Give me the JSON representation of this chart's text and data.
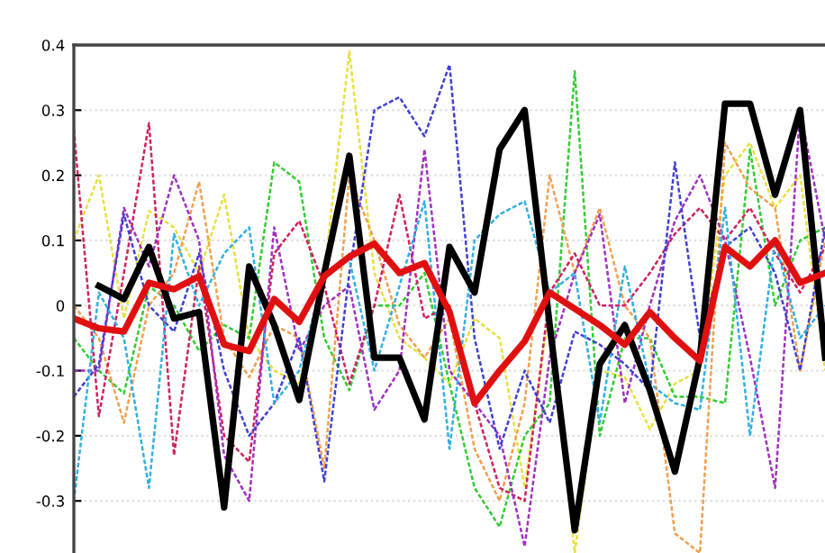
{
  "chart_data": {
    "type": "line",
    "categories": [
      null,
      null,
      null,
      null,
      null,
      null,
      null,
      null,
      null,
      null,
      null,
      null,
      null,
      null,
      null,
      null,
      null,
      null,
      null,
      null,
      null,
      null,
      null,
      null,
      null,
      null,
      null,
      null,
      null,
      null,
      null
    ],
    "ylim": [
      -0.38,
      0.4
    ],
    "yticks": [
      -0.3,
      -0.2,
      -0.1,
      0,
      0.1,
      0.2,
      0.3,
      0.4
    ],
    "tick_labels": "y",
    "grid": "y",
    "legend": false,
    "marker": "none",
    "series": [
      {
        "color": "#e8e040",
        "line_style": "dashed",
        "values": [
          0.1,
          0.2,
          -0.02,
          0.145,
          0.12,
          0.05,
          0.17,
          -0.05,
          -0.1,
          -0.12,
          0.05,
          0.39,
          0.05,
          -0.05,
          -0.08,
          -0.12,
          -0.02,
          -0.05,
          -0.28,
          0.0,
          -0.38,
          -0.1,
          -0.11,
          -0.19,
          -0.12,
          -0.1,
          0.2,
          0.25,
          0.15,
          0.2,
          -0.1
        ]
      },
      {
        "color": "#33cc33",
        "line_style": "dashed",
        "values": [
          -0.05,
          -0.1,
          -0.135,
          0.03,
          0.0,
          -0.07,
          -0.03,
          -0.05,
          0.22,
          0.19,
          -0.05,
          -0.13,
          0.0,
          0.0,
          0.05,
          -0.12,
          -0.28,
          -0.34,
          -0.2,
          -0.15,
          0.36,
          -0.2,
          -0.05,
          -0.05,
          -0.14,
          -0.14,
          -0.15,
          0.24,
          0.0,
          0.1,
          0.12
        ]
      },
      {
        "color": "#f0a050",
        "line_style": "dashed",
        "values": [
          0.0,
          -0.05,
          -0.18,
          0.0,
          0.05,
          0.19,
          -0.05,
          -0.11,
          -0.03,
          -0.05,
          -0.25,
          0.2,
          0.1,
          -0.03,
          -0.08,
          -0.02,
          -0.22,
          -0.3,
          -0.15,
          0.2,
          0.05,
          0.15,
          0.0,
          -0.05,
          -0.35,
          -0.38,
          0.25,
          0.18,
          0.15,
          -0.1,
          0.1
        ]
      },
      {
        "color": "#d02060",
        "line_style": "dashed",
        "values": [
          0.27,
          -0.17,
          0.05,
          0.28,
          -0.23,
          0.06,
          -0.2,
          -0.24,
          0.08,
          0.13,
          0.03,
          -0.12,
          0.0,
          0.17,
          -0.02,
          0.0,
          -0.15,
          -0.28,
          -0.3,
          0.02,
          0.08,
          0.0,
          0.0,
          0.05,
          0.11,
          0.15,
          0.1,
          0.15,
          0.08,
          0.02,
          0.09
        ]
      },
      {
        "color": "#a030c0",
        "line_style": "dashed",
        "values": [
          -0.1,
          -0.1,
          0.15,
          0.06,
          0.2,
          0.1,
          -0.23,
          -0.3,
          0.12,
          -0.07,
          0.0,
          0.03,
          -0.16,
          -0.1,
          0.24,
          -0.1,
          -0.15,
          -0.2,
          -0.37,
          -0.08,
          0.05,
          0.14,
          -0.15,
          0.0,
          0.13,
          0.2,
          0.1,
          -0.08,
          -0.28,
          0.3,
          0.1
        ]
      },
      {
        "color": "#4040d0",
        "line_style": "dashed",
        "values": [
          -0.14,
          -0.09,
          0.14,
          0.0,
          -0.04,
          0.08,
          -0.1,
          -0.2,
          -0.15,
          -0.05,
          -0.27,
          0.05,
          0.3,
          0.32,
          0.26,
          0.37,
          -0.05,
          -0.22,
          -0.1,
          -0.18,
          -0.04,
          -0.06,
          -0.09,
          -0.13,
          0.22,
          -0.05,
          0.09,
          0.12,
          0.05,
          -0.1,
          0.12
        ]
      },
      {
        "color": "#30b0e0",
        "line_style": "dashed",
        "values": [
          -0.3,
          0.02,
          -0.05,
          -0.28,
          0.11,
          0.0,
          0.08,
          0.12,
          -0.15,
          -0.1,
          0.05,
          0.07,
          -0.1,
          0.03,
          0.16,
          -0.22,
          0.1,
          0.14,
          0.16,
          0.02,
          0.05,
          -0.18,
          0.06,
          -0.12,
          -0.15,
          -0.16,
          0.15,
          -0.2,
          0.1,
          -0.05,
          0.0
        ]
      },
      {
        "color": "#000000",
        "line_style": "solid",
        "values": [
          null,
          0.03,
          0.01,
          0.09,
          -0.02,
          -0.01,
          -0.31,
          0.06,
          -0.03,
          -0.145,
          0.05,
          0.23,
          -0.08,
          -0.08,
          -0.175,
          0.09,
          0.02,
          0.24,
          0.3,
          -0.03,
          -0.345,
          -0.09,
          -0.03,
          -0.13,
          -0.255,
          -0.08,
          0.31,
          0.31,
          0.17,
          0.3,
          -0.08
        ]
      },
      {
        "color": "#e01010",
        "line_style": "solid",
        "values": [
          -0.02,
          -0.035,
          -0.04,
          0.035,
          0.025,
          0.045,
          -0.06,
          -0.07,
          0.01,
          -0.025,
          0.045,
          0.075,
          0.095,
          0.05,
          0.065,
          -0.01,
          -0.15,
          -0.1,
          -0.055,
          0.02,
          -0.005,
          -0.03,
          -0.06,
          -0.01,
          -0.05,
          -0.085,
          0.09,
          0.06,
          0.1,
          0.035,
          0.05
        ]
      }
    ]
  }
}
